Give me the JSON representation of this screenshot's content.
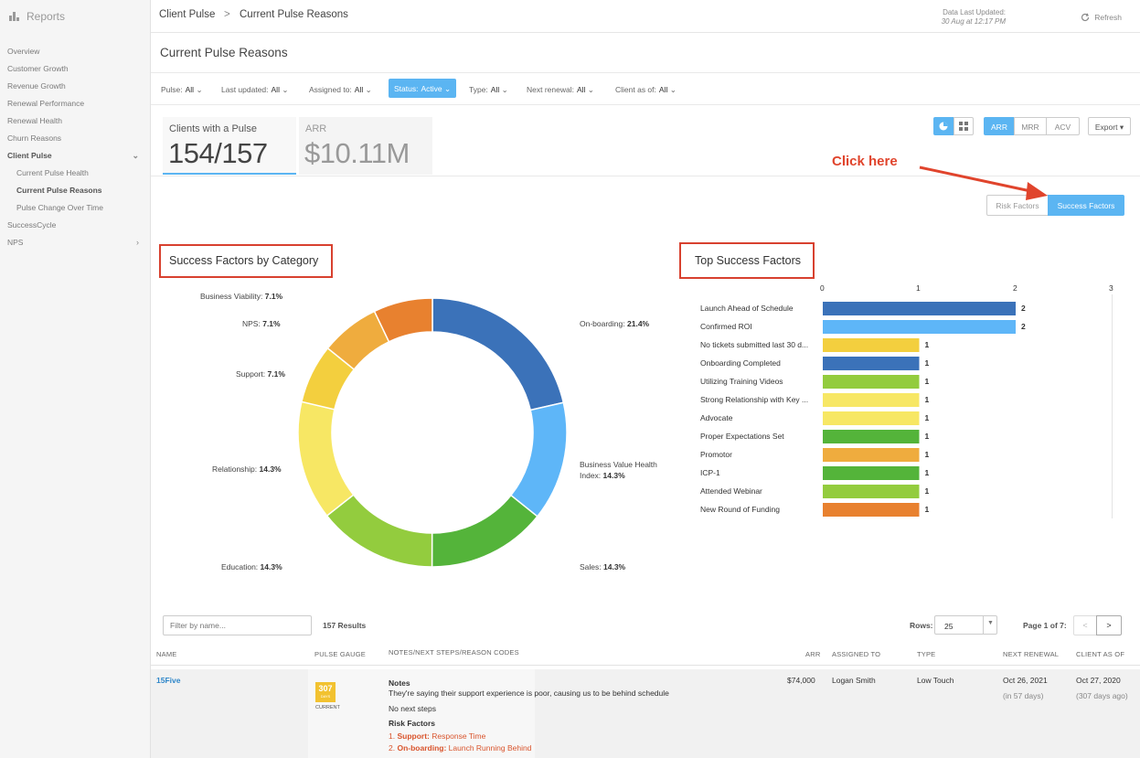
{
  "sidebar": {
    "brand": "Reports",
    "items": [
      {
        "label": "Overview",
        "level": 0
      },
      {
        "label": "Customer Growth",
        "level": 0
      },
      {
        "label": "Revenue Growth",
        "level": 0
      },
      {
        "label": "Renewal Performance",
        "level": 0
      },
      {
        "label": "Renewal Health",
        "level": 0
      },
      {
        "label": "Churn Reasons",
        "level": 0
      },
      {
        "label": "Client Pulse",
        "level": 0,
        "expanded": true
      },
      {
        "label": "Current Pulse Health",
        "level": 1
      },
      {
        "label": "Current Pulse Reasons",
        "level": 1,
        "active": true
      },
      {
        "label": "Pulse Change Over Time",
        "level": 1
      },
      {
        "label": "SuccessCycle",
        "level": 0
      },
      {
        "label": "NPS",
        "level": 0,
        "has_children": true
      }
    ]
  },
  "header": {
    "breadcrumb_root": "Client Pulse",
    "breadcrumb_sep": ">",
    "breadcrumb_current": "Current Pulse Reasons",
    "updated_label": "Data Last Updated:",
    "updated_value": "30 Aug at 12:17 PM",
    "refresh_label": "Refresh"
  },
  "page_title": "Current Pulse Reasons",
  "filters": [
    {
      "label": "Pulse:",
      "value": "All"
    },
    {
      "label": "Last updated:",
      "value": "All"
    },
    {
      "label": "Assigned to:",
      "value": "All"
    },
    {
      "label": "Status:",
      "value": "Active",
      "active": true
    },
    {
      "label": "Type:",
      "value": "All"
    },
    {
      "label": "Next renewal:",
      "value": "All"
    },
    {
      "label": "Client as of:",
      "value": "All"
    }
  ],
  "kpis": {
    "clients_label": "Clients with a Pulse",
    "clients_value": "154/157",
    "arr_label": "ARR",
    "arr_value": "$10.11M"
  },
  "controls": {
    "metric_options": [
      "ARR",
      "MRR",
      "ACV"
    ],
    "metric_selected": "ARR",
    "export_label": "Export",
    "factor_tabs": [
      "Risk Factors",
      "Success Factors"
    ],
    "factor_selected": "Success Factors"
  },
  "annotation": {
    "text": "Click here",
    "color": "#e0442c"
  },
  "donut": {
    "title": "Success Factors by Category",
    "slices": [
      {
        "name": "On-boarding:",
        "pct": "21.4%",
        "value": 21.4,
        "color": "#3b72b9"
      },
      {
        "name": "Business Value Health Index:",
        "pct": "14.3%",
        "value": 14.3,
        "color": "#5eb6f8"
      },
      {
        "name": "Sales:",
        "pct": "14.3%",
        "value": 14.3,
        "color": "#54b43a"
      },
      {
        "name": "Education:",
        "pct": "14.3%",
        "value": 14.3,
        "color": "#93cc3e"
      },
      {
        "name": "Relationship:",
        "pct": "14.3%",
        "value": 14.3,
        "color": "#f7e764"
      },
      {
        "name": "Support:",
        "pct": "7.1%",
        "value": 7.1,
        "color": "#f3cf3e"
      },
      {
        "name": "NPS:",
        "pct": "7.1%",
        "value": 7.1,
        "color": "#efac3e"
      },
      {
        "name": "Business Viability:",
        "pct": "7.1%",
        "value": 7.1,
        "color": "#e8812f"
      }
    ]
  },
  "chart_data": {
    "type": "bar",
    "title": "Top Success Factors",
    "orientation": "horizontal",
    "xlim": [
      0,
      3
    ],
    "xticks": [
      "0",
      "1",
      "2",
      "3"
    ],
    "categories": [
      "Launch Ahead of Schedule",
      "Confirmed ROI",
      "No tickets submitted last 30 d...",
      "Onboarding Completed",
      "Utilizing Training Videos",
      "Strong Relationship with Key ...",
      "Advocate",
      "Proper Expectations Set",
      "Promotor",
      "ICP-1",
      "Attended Webinar",
      "New Round of Funding"
    ],
    "values": [
      2,
      2,
      1,
      1,
      1,
      1,
      1,
      1,
      1,
      1,
      1,
      1
    ],
    "value_labels": [
      "2",
      "2",
      "1",
      "1",
      "1",
      "1",
      "1",
      "1",
      "1",
      "1",
      "1",
      "1"
    ],
    "colors": [
      "#3b72b9",
      "#5eb6f8",
      "#f3cf3e",
      "#3b72b9",
      "#93cc3e",
      "#f7e764",
      "#f7e764",
      "#54b43a",
      "#efac3e",
      "#54b43a",
      "#93cc3e",
      "#e8812f"
    ]
  },
  "table": {
    "filter_placeholder": "Filter by name...",
    "results": "157 Results",
    "rows_label": "Rows:",
    "rows_value": "25",
    "page_label": "Page 1 of 7:",
    "prev": "<",
    "next": ">",
    "columns": [
      "NAME",
      "PULSE GAUGE",
      "NOTES/NEXT STEPS/REASON CODES",
      "ARR",
      "ASSIGNED TO",
      "TYPE",
      "NEXT RENEWAL",
      "CLIENT AS OF"
    ],
    "row": {
      "name": "15Five",
      "gauge_value": "307",
      "gauge_unit": "DAYS",
      "gauge_status": "CURRENT",
      "notes_heading": "Notes",
      "notes_text": "They're saying their support experience is poor, causing us to be behind schedule",
      "next_steps": "No next steps",
      "risk_heading": "Risk Factors",
      "risk_1_num": "1.",
      "risk_1_cat": "Support:",
      "risk_1_text": "Response Time",
      "risk_2_num": "2.",
      "risk_2_cat": "On-boarding:",
      "risk_2_text": "Launch Running Behind",
      "arr": "$74,000",
      "assigned_to": "Logan Smith",
      "type": "Low Touch",
      "next_renewal": "Oct 26, 2021",
      "next_renewal_sub": "(in 57 days)",
      "client_as_of": "Oct 27, 2020",
      "client_as_of_sub": "(307 days ago)"
    }
  }
}
